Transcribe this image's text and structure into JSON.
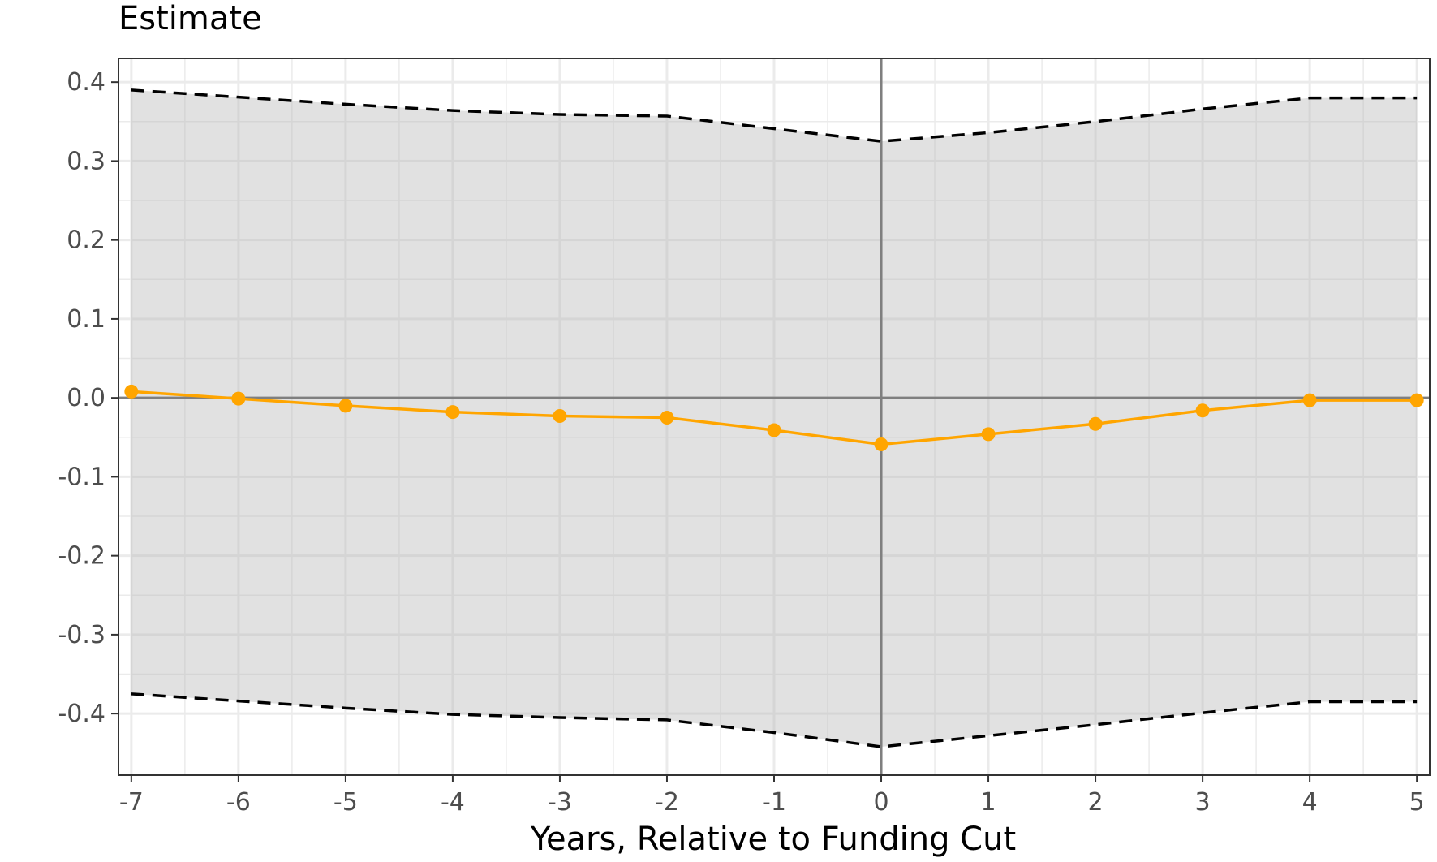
{
  "chart_data": {
    "type": "line",
    "title": "Estimate",
    "xlabel": "Years, Relative to Funding Cut",
    "ylabel": "",
    "xlim": [
      -7.12,
      5.12
    ],
    "ylim": [
      -0.478,
      0.43
    ],
    "xticks": [
      -7,
      -6,
      -5,
      -4,
      -3,
      -2,
      -1,
      0,
      1,
      2,
      3,
      4,
      5
    ],
    "xtick_labels": [
      "-7",
      "-6",
      "-5",
      "-4",
      "-3",
      "-2",
      "-1",
      "0",
      "1",
      "2",
      "3",
      "4",
      "5"
    ],
    "yticks": [
      0.4,
      0.3,
      0.2,
      0.1,
      0.0,
      -0.1,
      -0.2,
      -0.3,
      -0.4
    ],
    "ytick_labels": [
      "0.4",
      "0.3",
      "0.2",
      "0.1",
      "0.0",
      "-0.1",
      "-0.2",
      "-0.3",
      "-0.4"
    ],
    "grid": true,
    "reference_lines": {
      "x": 0,
      "y": 0
    },
    "x": [
      -7,
      -6,
      -5,
      -4,
      -3,
      -2,
      -1,
      0,
      1,
      2,
      3,
      4,
      5
    ],
    "series": [
      {
        "role": "estimate",
        "values": [
          0.008,
          -0.001,
          -0.01,
          -0.018,
          -0.023,
          -0.025,
          -0.041,
          -0.059,
          -0.046,
          -0.033,
          -0.016,
          -0.003,
          -0.003
        ],
        "color": "#FFA500"
      },
      {
        "role": "upper-bound",
        "values": [
          0.39,
          0.381,
          0.372,
          0.364,
          0.359,
          0.357,
          0.341,
          0.325,
          0.336,
          0.35,
          0.366,
          0.38,
          0.38
        ],
        "color": "#000000"
      },
      {
        "role": "lower-bound",
        "values": [
          -0.375,
          -0.384,
          -0.393,
          -0.401,
          -0.405,
          -0.408,
          -0.424,
          -0.442,
          -0.428,
          -0.414,
          -0.399,
          -0.385,
          -0.385
        ],
        "color": "#000000"
      }
    ],
    "band_color": "#E0E0E0"
  }
}
